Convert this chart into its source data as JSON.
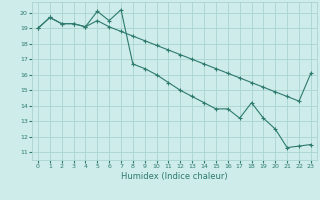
{
  "xlabel": "Humidex (Indice chaleur)",
  "bg_color": "#ceecea",
  "grid_color": "#aad4d0",
  "line_color": "#2d7a6e",
  "xlim": [
    -0.5,
    23.5
  ],
  "ylim": [
    10.5,
    20.7
  ],
  "yticks": [
    11,
    12,
    13,
    14,
    15,
    16,
    17,
    18,
    19,
    20
  ],
  "xticks": [
    0,
    1,
    2,
    3,
    4,
    5,
    6,
    7,
    8,
    9,
    10,
    11,
    12,
    13,
    14,
    15,
    16,
    17,
    18,
    19,
    20,
    21,
    22,
    23
  ],
  "line1_x": [
    0,
    1,
    2,
    3,
    4,
    5,
    6,
    7,
    8,
    9,
    10,
    11,
    12,
    13,
    14,
    15,
    16,
    17,
    18,
    19,
    20,
    21,
    22,
    23
  ],
  "line1_y": [
    19.0,
    19.7,
    19.3,
    19.3,
    19.1,
    19.5,
    19.1,
    18.8,
    18.5,
    18.2,
    17.9,
    17.6,
    17.3,
    17.0,
    16.7,
    16.4,
    16.1,
    15.8,
    15.5,
    15.2,
    14.9,
    14.6,
    14.3,
    16.1
  ],
  "line2_x": [
    0,
    1,
    2,
    3,
    4,
    5,
    6,
    7,
    8,
    9,
    10,
    11,
    12,
    13,
    14,
    15,
    16,
    17,
    18,
    19,
    20,
    21,
    22,
    23
  ],
  "line2_y": [
    19.0,
    19.7,
    19.3,
    19.3,
    19.1,
    20.1,
    19.5,
    20.2,
    16.7,
    16.4,
    16.0,
    15.5,
    15.0,
    14.6,
    14.2,
    13.8,
    13.8,
    13.2,
    14.2,
    13.2,
    12.5,
    11.3,
    11.4,
    11.5
  ]
}
